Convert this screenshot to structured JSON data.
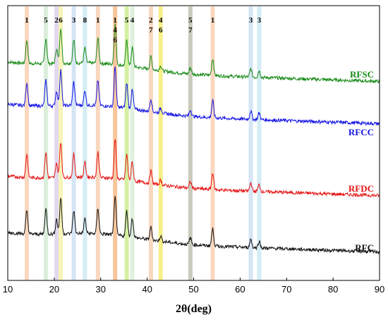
{
  "chart_data": {
    "type": "line",
    "xlabel": "2θ(deg)",
    "ylabel": "",
    "xlim": [
      10,
      90
    ],
    "x_ticks": [
      "10",
      "20",
      "30",
      "40",
      "50",
      "60",
      "70",
      "80",
      "90"
    ],
    "grid": false,
    "highlight_bands": [
      {
        "x": 14.1,
        "color": "#f7c9a8"
      },
      {
        "x": 18.2,
        "color": "#cfe8cf"
      },
      {
        "x": 20.5,
        "color": "#d8cbe8"
      },
      {
        "x": 21.4,
        "color": "#f5f0a0"
      },
      {
        "x": 24.2,
        "color": "#c6dcf3"
      },
      {
        "x": 26.6,
        "color": "#c6e6f1"
      },
      {
        "x": 29.4,
        "color": "#f7c9a8"
      },
      {
        "x": 33.1,
        "color": "#f5b27a"
      },
      {
        "x": 35.6,
        "color": "#c5ec82"
      },
      {
        "x": 36.8,
        "color": "#d4ecd3"
      },
      {
        "x": 40.8,
        "color": "#f7c9a8"
      },
      {
        "x": 42.9,
        "color": "#f3ea60"
      },
      {
        "x": 49.3,
        "color": "#b9b9a6"
      },
      {
        "x": 54.1,
        "color": "#f7c9a8"
      },
      {
        "x": 62.3,
        "color": "#c6dcf3"
      },
      {
        "x": 64.1,
        "color": "#c6e6f1"
      }
    ],
    "peak_labels": [
      {
        "x": 14.1,
        "lines": [
          "1"
        ]
      },
      {
        "x": 18.2,
        "lines": [
          "5"
        ]
      },
      {
        "x": 20.5,
        "lines": [
          "2"
        ]
      },
      {
        "x": 21.4,
        "lines": [
          "6"
        ]
      },
      {
        "x": 24.2,
        "lines": [
          "3"
        ]
      },
      {
        "x": 26.6,
        "lines": [
          "8"
        ]
      },
      {
        "x": 29.4,
        "lines": [
          "1"
        ]
      },
      {
        "x": 33.1,
        "lines": [
          "1",
          "4",
          "6"
        ]
      },
      {
        "x": 35.6,
        "lines": [
          "5"
        ]
      },
      {
        "x": 36.8,
        "lines": [
          "4"
        ]
      },
      {
        "x": 40.8,
        "lines": [
          "2",
          "7"
        ]
      },
      {
        "x": 42.9,
        "lines": [
          "4",
          "6"
        ]
      },
      {
        "x": 49.3,
        "lines": [
          "5",
          "7"
        ]
      },
      {
        "x": 54.1,
        "lines": [
          "1"
        ]
      },
      {
        "x": 62.3,
        "lines": [
          "3"
        ]
      },
      {
        "x": 64.1,
        "lines": [
          "3"
        ]
      }
    ],
    "series": [
      {
        "name": "RFSC",
        "color": "#178a17",
        "offset": 3.0
      },
      {
        "name": "RFCC",
        "color": "#1414e6",
        "offset": 2.0
      },
      {
        "name": "RFDC",
        "color": "#e61414",
        "offset": 1.0
      },
      {
        "name": "RFC",
        "color": "#111111",
        "offset": 0.0
      }
    ],
    "peaks": [
      {
        "x": 14.1,
        "h": 0.55
      },
      {
        "x": 18.2,
        "h": 0.6
      },
      {
        "x": 20.5,
        "h": 0.35
      },
      {
        "x": 21.4,
        "h": 0.85
      },
      {
        "x": 24.2,
        "h": 0.55
      },
      {
        "x": 26.6,
        "h": 0.35
      },
      {
        "x": 29.4,
        "h": 0.6
      },
      {
        "x": 33.1,
        "h": 0.95
      },
      {
        "x": 35.6,
        "h": 0.6
      },
      {
        "x": 36.8,
        "h": 0.45
      },
      {
        "x": 40.8,
        "h": 0.3
      },
      {
        "x": 42.9,
        "h": 0.12
      },
      {
        "x": 49.3,
        "h": 0.15
      },
      {
        "x": 54.1,
        "h": 0.4
      },
      {
        "x": 62.3,
        "h": 0.2
      },
      {
        "x": 64.1,
        "h": 0.16
      }
    ]
  }
}
